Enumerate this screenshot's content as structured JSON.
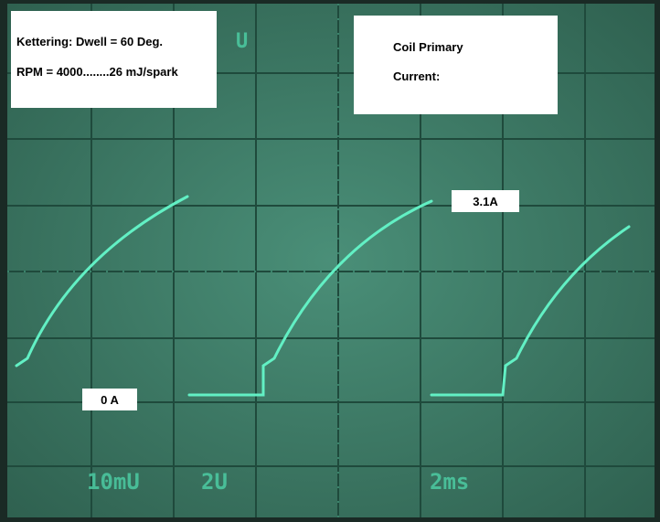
{
  "annotations": {
    "info_box": {
      "line1": "Kettering: Dwell = 60 Deg.",
      "line2": "RPM = 4000........26 mJ/spark"
    },
    "signal_box": {
      "line1": "Coil Primary",
      "line2": "Current:"
    },
    "peak_label": "3.1A",
    "zero_label": "0 A"
  },
  "scope_readout": {
    "channel": "U",
    "ch1_scale": "10mU",
    "ch2_scale": "2U",
    "timebase": "2ms"
  }
}
